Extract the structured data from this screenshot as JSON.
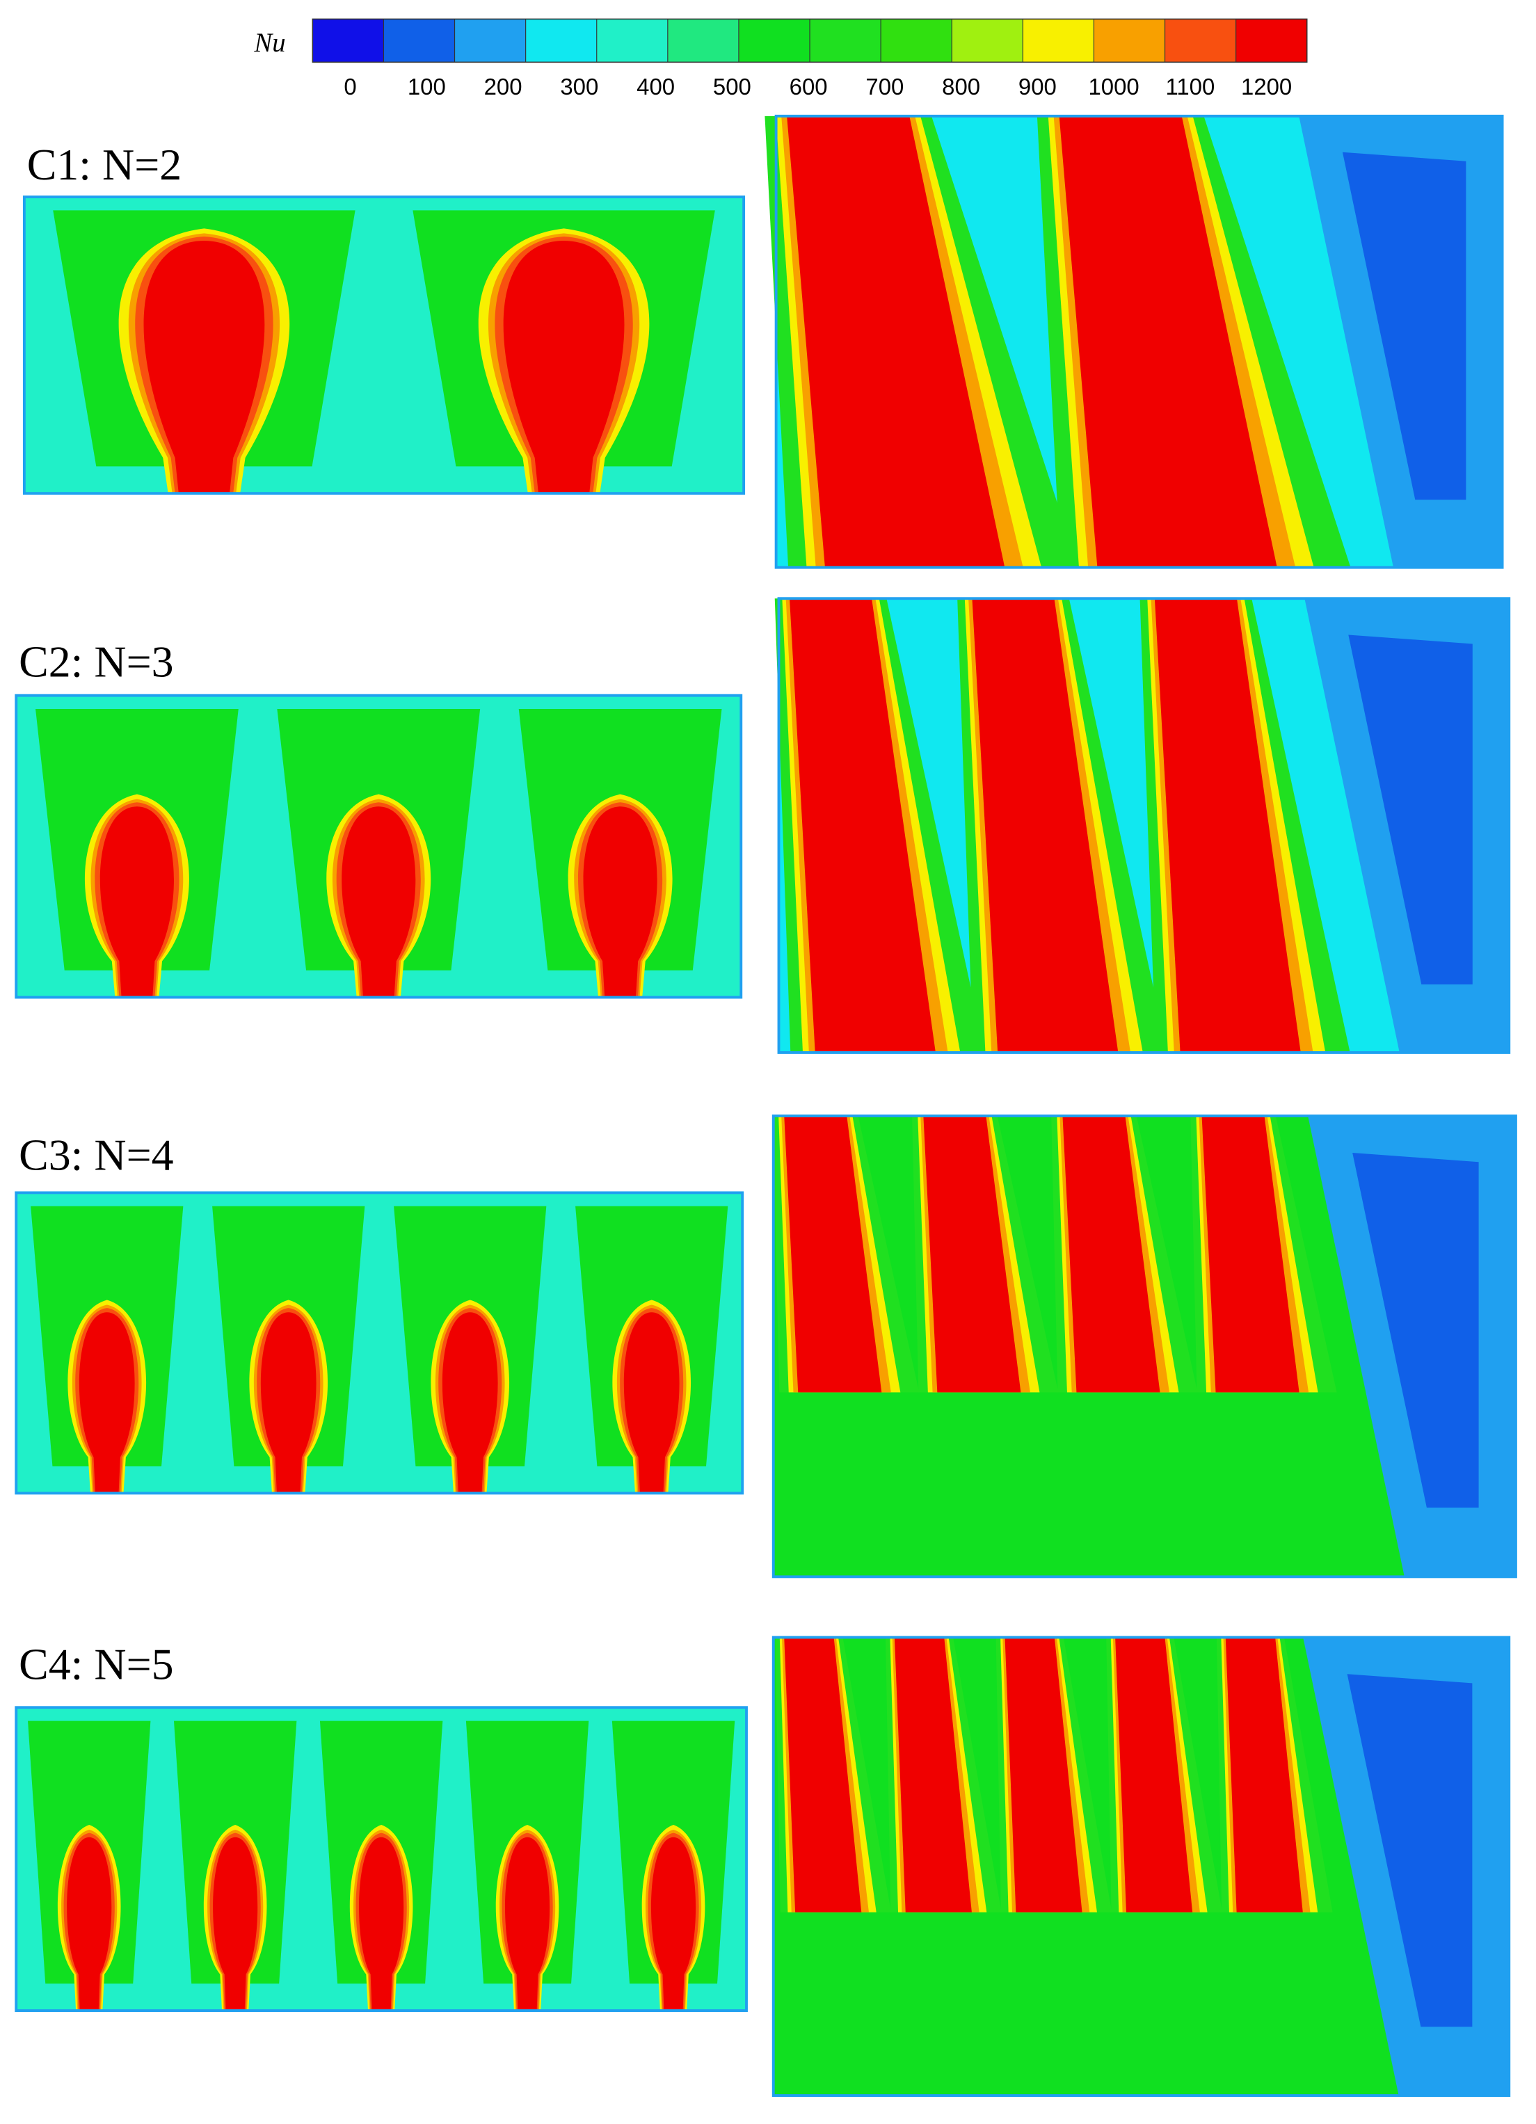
{
  "colorbar": {
    "label": "Nu",
    "ticks": [
      0,
      100,
      200,
      300,
      400,
      500,
      600,
      700,
      800,
      900,
      1000,
      1100,
      1200
    ],
    "colors": [
      "#1010e8",
      "#1060e8",
      "#20a0f0",
      "#10e8f0",
      "#20f0c8",
      "#20e880",
      "#10e020",
      "#20e020",
      "#30e010",
      "#a0f010",
      "#f8f000",
      "#f8a000",
      "#f85010",
      "#f00000"
    ]
  },
  "panels": [
    {
      "label": "C1: N=2"
    },
    {
      "label": "C2: N=3"
    },
    {
      "label": "C3: N=4"
    },
    {
      "label": "C4: N=5"
    }
  ]
}
